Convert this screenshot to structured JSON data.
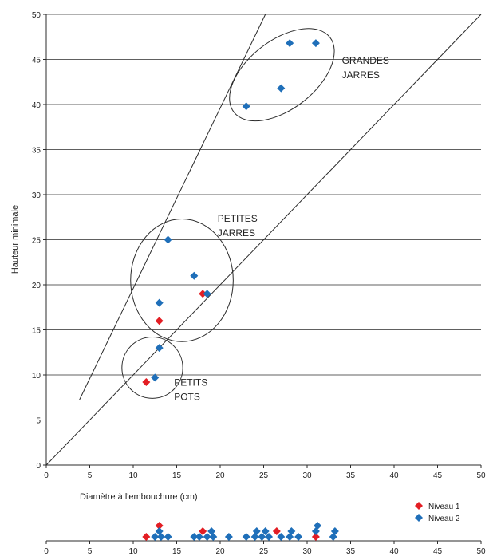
{
  "chart_data": [
    {
      "type": "scatter",
      "xlabel": "Diamètre à l'embouchure (cm)",
      "ylabel": "Hauteur minimale",
      "xlim": [
        0,
        50
      ],
      "ylim": [
        0,
        50
      ],
      "x_ticks": [
        0,
        5,
        10,
        15,
        20,
        25,
        30,
        35,
        40,
        45,
        50
      ],
      "y_ticks": [
        0,
        5,
        10,
        15,
        20,
        25,
        30,
        35,
        40,
        45,
        50
      ],
      "grid": "horizontal",
      "series": [
        {
          "name": "Niveau 1",
          "color": "#e31e24",
          "points": [
            {
              "x": 11.5,
              "y": 9.2
            },
            {
              "x": 13,
              "y": 16
            },
            {
              "x": 18,
              "y": 19
            }
          ]
        },
        {
          "name": "Niveau 2",
          "color": "#1f6fb9",
          "points": [
            {
              "x": 12.5,
              "y": 9.7
            },
            {
              "x": 13,
              "y": 13
            },
            {
              "x": 13,
              "y": 18
            },
            {
              "x": 14,
              "y": 25
            },
            {
              "x": 17,
              "y": 21
            },
            {
              "x": 18.5,
              "y": 19
            },
            {
              "x": 23,
              "y": 39.8
            },
            {
              "x": 27,
              "y": 41.8
            },
            {
              "x": 28,
              "y": 46.8
            },
            {
              "x": 31,
              "y": 46.8
            }
          ]
        }
      ],
      "reference_lines": [
        {
          "from": {
            "x": 0,
            "y": 0
          },
          "to": {
            "x": 50,
            "y": 50
          }
        },
        {
          "from": {
            "x": 3.8,
            "y": 7.2
          },
          "to": {
            "x": 25.2,
            "y": 50
          }
        }
      ],
      "groups": [
        {
          "label_lines": [
            "GRANDES",
            "JARRES"
          ],
          "cx": 27.1,
          "cy": 43.3,
          "rx": 7.0,
          "ry": 3.8,
          "rotate": -38,
          "label_x": 34,
          "label_y": 44.5
        },
        {
          "label_lines": [
            "PETITES",
            "JARRES"
          ],
          "cx": 15.6,
          "cy": 20.5,
          "rx": 5.9,
          "ry": 6.8,
          "rotate": 0,
          "label_x": 19.7,
          "label_y": 27
        },
        {
          "label_lines": [
            "PETITS",
            "POTS"
          ],
          "cx": 12.2,
          "cy": 10.8,
          "rx": 3.5,
          "ry": 3.4,
          "rotate": 0,
          "label_x": 14.7,
          "label_y": 8.8
        }
      ]
    },
    {
      "type": "scatter",
      "xlim": [
        0,
        50
      ],
      "x_ticks": [
        0,
        5,
        10,
        15,
        20,
        25,
        30,
        35,
        40,
        45,
        50
      ],
      "series": [
        {
          "name": "Niveau 1",
          "color": "#e31e24",
          "points": [
            {
              "x": 11.5,
              "y": 0
            },
            {
              "x": 13,
              "y": 2
            },
            {
              "x": 18,
              "y": 1
            },
            {
              "x": 26.5,
              "y": 1
            },
            {
              "x": 31,
              "y": 0
            }
          ]
        },
        {
          "name": "Niveau 2",
          "color": "#1f6fb9",
          "points": [
            {
              "x": 12.5,
              "y": 0
            },
            {
              "x": 13,
              "y": 1
            },
            {
              "x": 13.2,
              "y": 0
            },
            {
              "x": 14,
              "y": 0
            },
            {
              "x": 17,
              "y": 0
            },
            {
              "x": 17.6,
              "y": 0
            },
            {
              "x": 18.5,
              "y": 0
            },
            {
              "x": 19,
              "y": 1
            },
            {
              "x": 19.2,
              "y": 0
            },
            {
              "x": 21,
              "y": 0
            },
            {
              "x": 23,
              "y": 0
            },
            {
              "x": 24,
              "y": 0
            },
            {
              "x": 24.2,
              "y": 1
            },
            {
              "x": 24.8,
              "y": 0
            },
            {
              "x": 25.2,
              "y": 1
            },
            {
              "x": 25.6,
              "y": 0
            },
            {
              "x": 27,
              "y": 0
            },
            {
              "x": 28,
              "y": 0
            },
            {
              "x": 28.2,
              "y": 1
            },
            {
              "x": 29,
              "y": 0
            },
            {
              "x": 31,
              "y": 1
            },
            {
              "x": 31.2,
              "y": 2
            },
            {
              "x": 33,
              "y": 0
            },
            {
              "x": 33.2,
              "y": 1
            }
          ]
        }
      ]
    }
  ],
  "legend": {
    "placement": "right",
    "items": [
      {
        "label": "Niveau 1",
        "color": "#e31e24"
      },
      {
        "label": "Niveau 2",
        "color": "#1f6fb9"
      }
    ]
  }
}
